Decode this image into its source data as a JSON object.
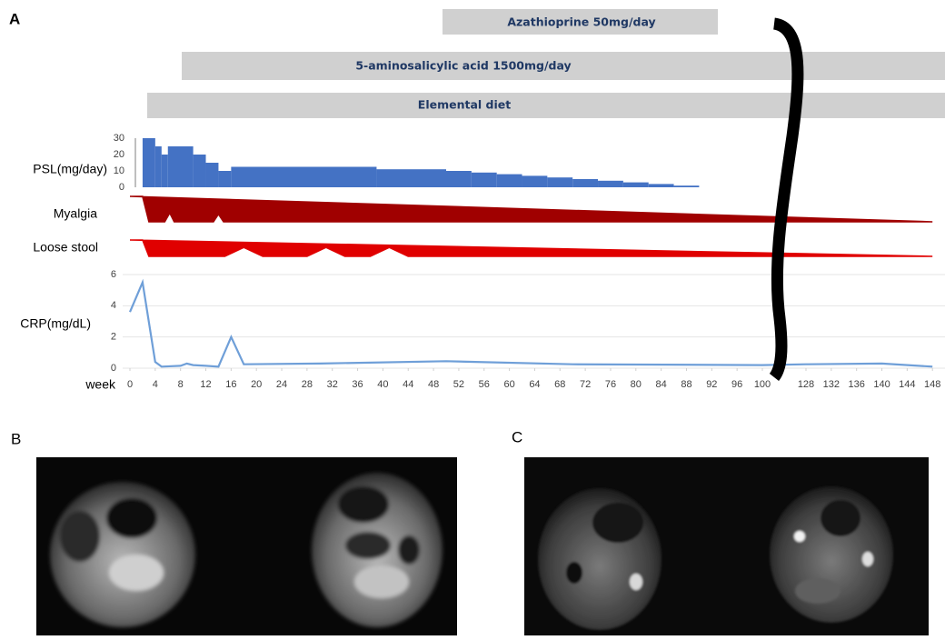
{
  "panels": [
    "A",
    "B",
    "C"
  ],
  "treatments": [
    "Azathioprine 50mg/day",
    "5-aminosalicylic acid 1500mg/day",
    "Elemental diet"
  ],
  "chart_data": [
    {
      "type": "histogram",
      "ylabel": "PSL(mg/day)",
      "color": "#4472c4",
      "bins": [
        2,
        4,
        5,
        6,
        10,
        12,
        14,
        16,
        39,
        50,
        54,
        58,
        62,
        66,
        70,
        74,
        78,
        82,
        86,
        90
      ],
      "values": [
        30,
        25,
        20,
        25,
        20,
        15,
        10,
        12.5,
        11,
        10,
        9,
        8,
        7,
        6,
        5,
        4,
        3,
        2,
        1
      ],
      "ylim": [
        0,
        30
      ],
      "yticks": [
        0,
        10,
        20,
        30
      ]
    },
    {
      "type": "area",
      "ylabel": "Myalgia",
      "color": "#a00000",
      "x": [
        0,
        2,
        3,
        5.5,
        6.3,
        7,
        13.2,
        14,
        14.8,
        148
      ],
      "values": [
        1,
        1,
        0,
        0,
        0.35,
        0,
        0,
        0.3,
        0,
        0
      ]
    },
    {
      "type": "area",
      "ylabel": "Loose stool",
      "color": "#e00000",
      "x": [
        0,
        2,
        3,
        15,
        18,
        21,
        28,
        31,
        34,
        38,
        41,
        44,
        148
      ],
      "values": [
        1,
        1,
        0,
        0,
        0.55,
        0,
        0,
        0.55,
        0,
        0,
        0.55,
        0,
        0
      ]
    },
    {
      "type": "line",
      "ylabel": "CRP(mg/dL)",
      "xlabel": "week",
      "color": "#6f9fd8",
      "x": [
        0,
        2,
        4,
        5,
        8,
        9,
        10,
        12,
        14,
        16,
        18,
        30,
        50,
        70,
        100,
        128,
        140,
        148
      ],
      "values": [
        3.6,
        5.5,
        0.4,
        0.1,
        0.15,
        0.3,
        0.2,
        0.15,
        0.1,
        2,
        0.25,
        0.3,
        0.45,
        0.25,
        0.2,
        0.25,
        0.3,
        0.1
      ],
      "ylim": [
        0,
        6
      ],
      "yticks": [
        0,
        2,
        4,
        6
      ],
      "xticks": [
        0,
        4,
        8,
        12,
        16,
        20,
        24,
        28,
        32,
        36,
        40,
        44,
        48,
        52,
        56,
        60,
        64,
        68,
        72,
        76,
        80,
        84,
        88,
        92,
        96,
        100,
        128,
        132,
        136,
        140,
        144,
        148
      ],
      "x_break": [
        100,
        128
      ],
      "grid": true
    }
  ]
}
